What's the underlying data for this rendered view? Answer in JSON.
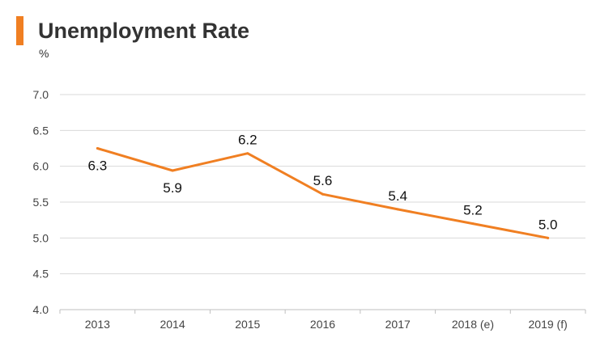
{
  "header": {
    "title": "Unemployment Rate",
    "accent_color": "#F07F22"
  },
  "chart_data": {
    "type": "line",
    "title": "Unemployment Rate",
    "xlabel": "",
    "ylabel": "%",
    "categories": [
      "2013",
      "2014",
      "2015",
      "2016",
      "2017",
      "2018 (e)",
      "2019 (f)"
    ],
    "series": [
      {
        "values": [
          6.25,
          5.94,
          6.18,
          5.61,
          5.4,
          5.2,
          5.0
        ],
        "data_labels": [
          "6.3",
          "5.9",
          "6.2",
          "5.6",
          "5.4",
          "5.2",
          "5.0"
        ],
        "label_positions": [
          "below",
          "below",
          "above",
          "above",
          "above",
          "above",
          "above"
        ],
        "color": "#F07F22"
      }
    ],
    "ylim": [
      4.0,
      7.0
    ],
    "yticks": [
      "7.0",
      "6.5",
      "6.0",
      "5.5",
      "5.0",
      "4.5",
      "4.0"
    ],
    "ytick_values": [
      7.0,
      6.5,
      6.0,
      5.5,
      5.0,
      4.5,
      4.0
    ],
    "grid": true,
    "grid_color": "#D9D9D9",
    "axis_color": "#BFBFBF",
    "legend": "none"
  }
}
